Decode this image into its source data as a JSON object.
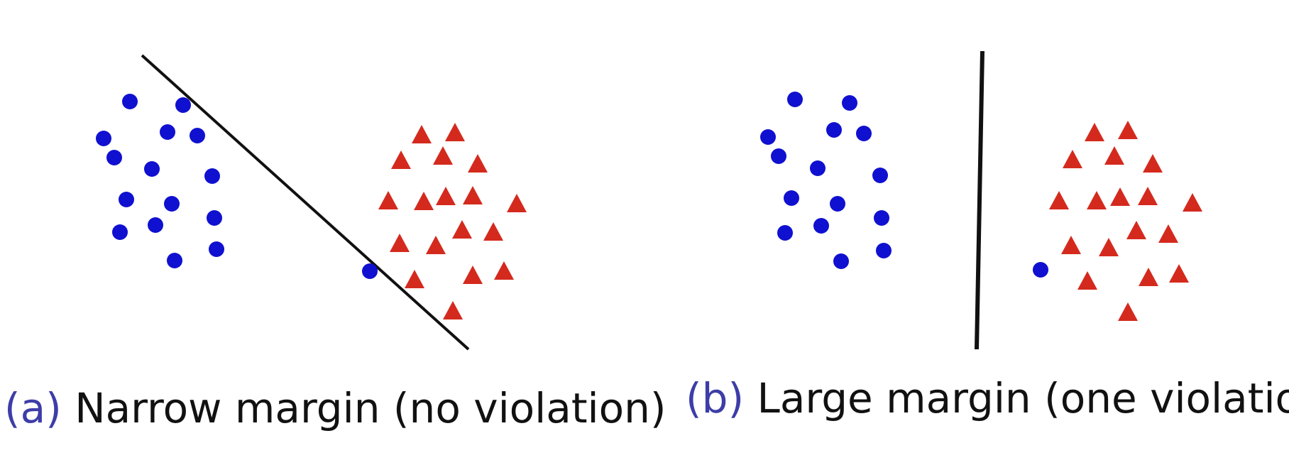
{
  "colors": {
    "circle": "#1010d0",
    "triangle": "#d42a1e",
    "line": "#111111",
    "label": "#3d3da8"
  },
  "panels": [
    {
      "id": "a",
      "caption_label": "(a)",
      "caption_text": "Narrow margin (no violation)",
      "boundary": {
        "from": [
          200,
          78
        ],
        "to": [
          660,
          492
        ]
      },
      "circles": [
        [
          183,
          143
        ],
        [
          258,
          148
        ],
        [
          146,
          195
        ],
        [
          236,
          186
        ],
        [
          278,
          191
        ],
        [
          161,
          222
        ],
        [
          214,
          238
        ],
        [
          299,
          248
        ],
        [
          178,
          281
        ],
        [
          242,
          287
        ],
        [
          302,
          307
        ],
        [
          169,
          327
        ],
        [
          219,
          317
        ],
        [
          305,
          351
        ],
        [
          246,
          367
        ],
        [
          521,
          382
        ]
      ],
      "triangles": [
        [
          594,
          190
        ],
        [
          641,
          187
        ],
        [
          565,
          226
        ],
        [
          624,
          220
        ],
        [
          673,
          231
        ],
        [
          547,
          283
        ],
        [
          597,
          284
        ],
        [
          628,
          277
        ],
        [
          666,
          276
        ],
        [
          728,
          287
        ],
        [
          563,
          343
        ],
        [
          614,
          346
        ],
        [
          651,
          324
        ],
        [
          695,
          327
        ],
        [
          584,
          394
        ],
        [
          666,
          388
        ],
        [
          710,
          382
        ],
        [
          638,
          438
        ]
      ]
    },
    {
      "id": "b",
      "caption_label": "(b)",
      "caption_text": "Large margin (one violation)",
      "boundary": {
        "from": [
          1384,
          72
        ],
        "to": [
          1376,
          492
        ]
      },
      "circles": [
        [
          1120,
          140
        ],
        [
          1197,
          145
        ],
        [
          1082,
          193
        ],
        [
          1175,
          183
        ],
        [
          1217,
          188
        ],
        [
          1097,
          220
        ],
        [
          1152,
          237
        ],
        [
          1240,
          247
        ],
        [
          1115,
          279
        ],
        [
          1180,
          287
        ],
        [
          1242,
          307
        ],
        [
          1106,
          328
        ],
        [
          1157,
          318
        ],
        [
          1245,
          353
        ],
        [
          1185,
          368
        ],
        [
          1466,
          380
        ]
      ],
      "triangles": [
        [
          1542,
          187
        ],
        [
          1589,
          184
        ],
        [
          1511,
          225
        ],
        [
          1570,
          220
        ],
        [
          1624,
          231
        ],
        [
          1492,
          283
        ],
        [
          1545,
          283
        ],
        [
          1578,
          278
        ],
        [
          1617,
          277
        ],
        [
          1680,
          286
        ],
        [
          1509,
          346
        ],
        [
          1562,
          349
        ],
        [
          1601,
          325
        ],
        [
          1646,
          330
        ],
        [
          1532,
          396
        ],
        [
          1618,
          391
        ],
        [
          1661,
          386
        ],
        [
          1589,
          440
        ]
      ]
    }
  ]
}
